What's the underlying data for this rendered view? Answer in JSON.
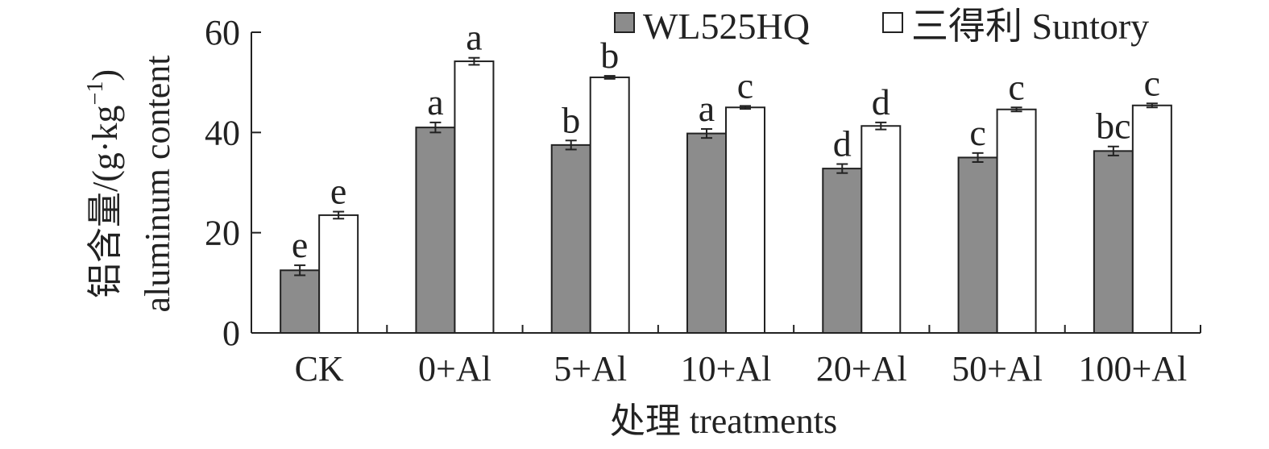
{
  "chart_data": {
    "type": "bar",
    "categories": [
      "CK",
      "0+Al",
      "5+Al",
      "10+Al",
      "20+Al",
      "50+Al",
      "100+Al"
    ],
    "series": [
      {
        "name": "WL525HQ",
        "color": "#8c8c8c",
        "values": [
          12.5,
          41.0,
          37.5,
          39.8,
          32.8,
          35.0,
          36.3
        ],
        "errors": [
          1.0,
          1.0,
          0.9,
          0.9,
          0.9,
          0.9,
          0.9
        ],
        "letters": [
          "e",
          "a",
          "b",
          "a",
          "d",
          "c",
          "bc"
        ]
      },
      {
        "name": "三得利 Suntory",
        "color": "#ffffff",
        "values": [
          23.5,
          54.2,
          51.0,
          45.0,
          41.3,
          44.6,
          45.4
        ],
        "errors": [
          0.7,
          0.7,
          0.3,
          0.3,
          0.7,
          0.4,
          0.4
        ],
        "letters": [
          "e",
          "a",
          "b",
          "c",
          "d",
          "c",
          "c"
        ]
      }
    ],
    "yticks": [
      "0",
      "20",
      "40",
      "60"
    ],
    "ylim": [
      0,
      60
    ],
    "ylabel_line1": "铝含量/(g·kg",
    "ylabel_line1_sup": "−1",
    "ylabel_line1_end": ")",
    "ylabel_line2": "aluminum content",
    "xlabel": "处理 treatments",
    "legend_position": "top-right"
  }
}
